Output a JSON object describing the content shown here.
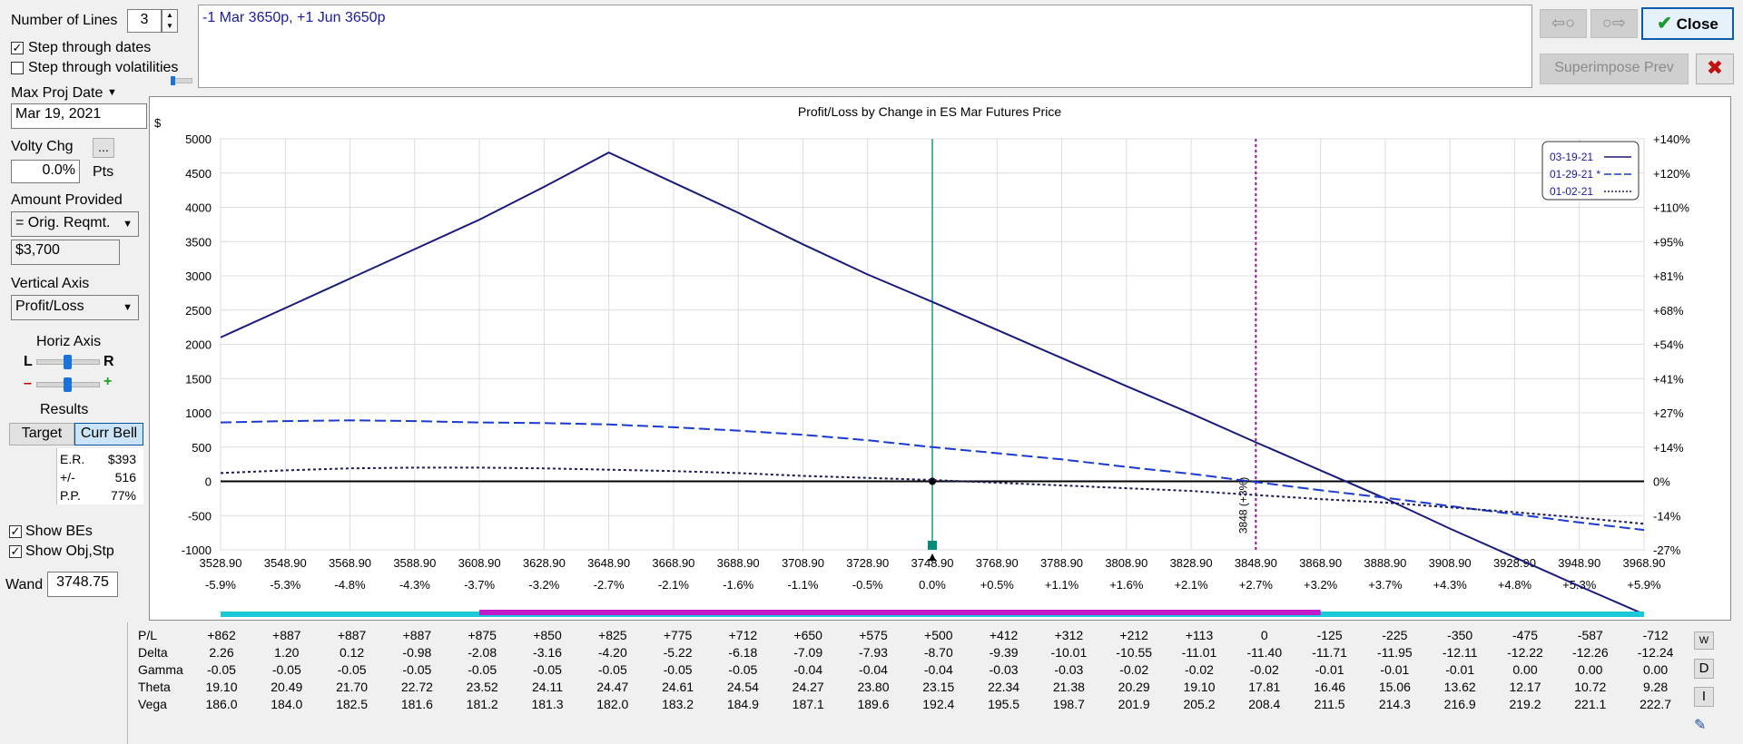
{
  "left_panel": {
    "number_of_lines_label": "Number of Lines",
    "number_of_lines_value": "3",
    "step_dates_label": "Step through dates",
    "step_dates_checked": true,
    "step_vols_label": "Step through volatilities",
    "step_vols_checked": false,
    "max_proj_date_label": "Max Proj Date",
    "max_proj_date_value": "Mar 19, 2021",
    "volty_chg_label": "Volty Chg",
    "volty_chg_button": "...",
    "volty_chg_value": "0.0%",
    "pts_label": "Pts",
    "amount_provided_label": "Amount Provided",
    "amount_provided_select": "= Orig. Reqmt.",
    "amount_value": "$3,700",
    "vertical_axis_label": "Vertical Axis",
    "vertical_axis_select": "Profit/Loss",
    "horiz_axis_label": "Horiz Axis",
    "slider_l": "L",
    "slider_r": "R",
    "slider_minus": "–",
    "slider_plus": "+",
    "results_label": "Results",
    "target_tab": "Target",
    "curr_bell_tab": "Curr Bell",
    "er_label": "E.R.",
    "er_value": "$393",
    "pm_label": "+/-",
    "pm_value": "516",
    "pp_label": "P.P.",
    "pp_value": "77%",
    "show_bes_label": "Show BEs",
    "show_bes_checked": true,
    "show_obj_label": "Show Obj,Stp",
    "show_obj_checked": true,
    "wand_label": "Wand",
    "wand_value": "3748.75"
  },
  "position_text": "-1 Mar 3650p, +1 Jun 3650p",
  "top_buttons": {
    "close_label": "Close",
    "superimpose_label": "Superimpose Prev",
    "back_icon": "⇦○",
    "forward_icon": "○⇨",
    "x_icon": "✖",
    "check_icon": "✔"
  },
  "chart_data": {
    "type": "line",
    "title": "Profit/Loss by Change in ES Mar Futures Price",
    "ylabel": "$",
    "ylim": [
      -1000,
      5000
    ],
    "yticks": [
      "5000",
      "4500",
      "4000",
      "3500",
      "3000",
      "2500",
      "2000",
      "1500",
      "1000",
      "500",
      "0",
      "-500",
      "-1000"
    ],
    "y2ticks": [
      "+140%",
      "+120%",
      "+110%",
      "+95%",
      "+81%",
      "+68%",
      "+54%",
      "+41%",
      "+27%",
      "+14%",
      "0%",
      "-14%",
      "-27%"
    ],
    "x_labels": [
      "3528.90",
      "3548.90",
      "3568.90",
      "3588.90",
      "3608.90",
      "3628.90",
      "3648.90",
      "3668.90",
      "3688.90",
      "3708.90",
      "3728.90",
      "3748.90",
      "3768.90",
      "3788.90",
      "3808.90",
      "3828.90",
      "3848.90",
      "3868.90",
      "3888.90",
      "3908.90",
      "3928.90",
      "3948.90",
      "3968.90"
    ],
    "x_pct_labels": [
      "-5.9%",
      "-5.3%",
      "-4.8%",
      "-4.3%",
      "-3.7%",
      "-3.2%",
      "-2.7%",
      "-2.1%",
      "-1.6%",
      "-1.1%",
      "-0.5%",
      "0.0%",
      "+0.5%",
      "+1.1%",
      "+1.6%",
      "+2.1%",
      "+2.7%",
      "+3.2%",
      "+3.7%",
      "+4.3%",
      "+4.8%",
      "+5.3%",
      "+5.9%"
    ],
    "x": [
      3528.9,
      3548.9,
      3568.9,
      3588.9,
      3608.9,
      3628.9,
      3648.9,
      3668.9,
      3688.9,
      3708.9,
      3728.9,
      3748.9,
      3768.9,
      3788.9,
      3808.9,
      3828.9,
      3848.9,
      3868.9,
      3888.9,
      3908.9,
      3928.9,
      3948.9,
      3968.9
    ],
    "xlim": [
      3528.9,
      3968.9
    ],
    "series": [
      {
        "name": "03-19-21",
        "style": "solid",
        "color": "#1a1a7a",
        "values": [
          2100,
          2530,
          2960,
          3390,
          3820,
          4300,
          4800,
          4360,
          3920,
          3460,
          3020,
          2620,
          2210,
          1800,
          1390,
          990,
          570,
          160,
          -250,
          -690,
          -1110,
          -1530,
          -1940
        ]
      },
      {
        "name": "01-29-21 *",
        "style": "dashed",
        "color": "#1a3ad0",
        "values": [
          860,
          880,
          890,
          880,
          860,
          850,
          830,
          790,
          740,
          680,
          600,
          500,
          410,
          320,
          210,
          110,
          -10,
          -130,
          -240,
          -360,
          -480,
          -600,
          -710
        ]
      },
      {
        "name": "01-02-21",
        "style": "dotted",
        "color": "#1a1a5a",
        "values": [
          120,
          160,
          190,
          200,
          200,
          190,
          170,
          150,
          120,
          80,
          50,
          20,
          -20,
          -60,
          -100,
          -140,
          -200,
          -260,
          -310,
          -380,
          -450,
          -530,
          -620
        ]
      }
    ],
    "current_price": 3748.9,
    "breakeven_price": 3848.9,
    "breakeven_label": "3848 (+3%)",
    "zero_marker_value": 0,
    "bar_cyan_range": [
      3528.9,
      3968.9
    ],
    "bar_magenta_range": [
      3608.9,
      3868.9
    ]
  },
  "table": {
    "row_labels": [
      "P/L",
      "Delta",
      "Gamma",
      "Theta",
      "Vega"
    ],
    "rows": [
      [
        "+862",
        "+887",
        "+887",
        "+887",
        "+875",
        "+850",
        "+825",
        "+775",
        "+712",
        "+650",
        "+575",
        "+500",
        "+412",
        "+312",
        "+212",
        "+113",
        "0",
        "-125",
        "-225",
        "-350",
        "-475",
        "-587",
        "-712"
      ],
      [
        "2.26",
        "1.20",
        "0.12",
        "-0.98",
        "-2.08",
        "-3.16",
        "-4.20",
        "-5.22",
        "-6.18",
        "-7.09",
        "-7.93",
        "-8.70",
        "-9.39",
        "-10.01",
        "-10.55",
        "-11.01",
        "-11.40",
        "-11.71",
        "-11.95",
        "-12.11",
        "-12.22",
        "-12.26",
        "-12.24"
      ],
      [
        "-0.05",
        "-0.05",
        "-0.05",
        "-0.05",
        "-0.05",
        "-0.05",
        "-0.05",
        "-0.05",
        "-0.05",
        "-0.04",
        "-0.04",
        "-0.04",
        "-0.03",
        "-0.03",
        "-0.02",
        "-0.02",
        "-0.02",
        "-0.01",
        "-0.01",
        "-0.01",
        "0.00",
        "0.00",
        "0.00"
      ],
      [
        "19.10",
        "20.49",
        "21.70",
        "22.72",
        "23.52",
        "24.11",
        "24.47",
        "24.61",
        "24.54",
        "24.27",
        "23.80",
        "23.15",
        "22.34",
        "21.38",
        "20.29",
        "19.10",
        "17.81",
        "16.46",
        "15.06",
        "13.62",
        "12.17",
        "10.72",
        "9.28"
      ],
      [
        "186.0",
        "184.0",
        "182.5",
        "181.6",
        "181.2",
        "181.3",
        "182.0",
        "183.2",
        "184.9",
        "187.1",
        "189.6",
        "192.4",
        "195.5",
        "198.7",
        "201.9",
        "205.2",
        "208.4",
        "211.5",
        "214.3",
        "216.9",
        "219.2",
        "221.1",
        "222.7"
      ]
    ],
    "side_buttons": [
      "W",
      "D",
      "I"
    ],
    "edit_icon": "✎"
  }
}
